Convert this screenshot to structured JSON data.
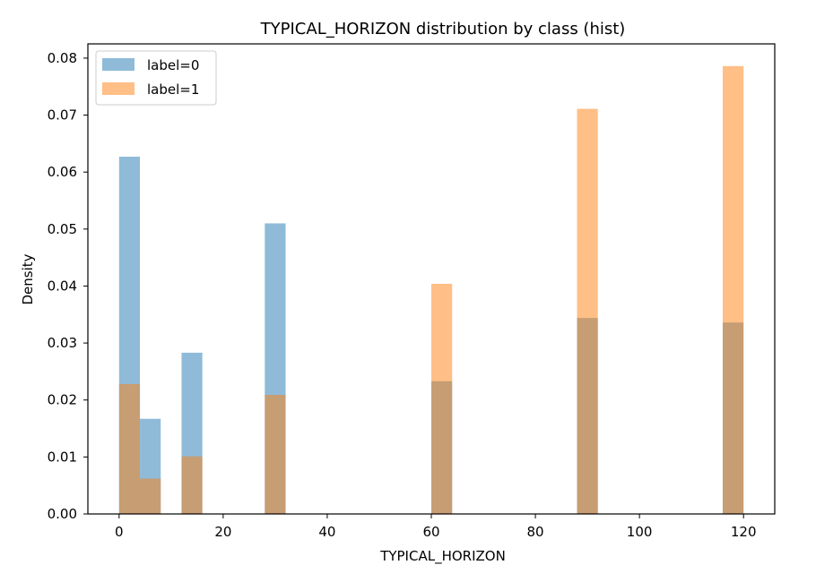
{
  "chart_data": {
    "type": "bar",
    "title": "TYPICAL_HORIZON distribution by class (hist)",
    "xlabel": "TYPICAL_HORIZON",
    "ylabel": "Density",
    "xlim": [
      -6,
      126
    ],
    "ylim": [
      0,
      0.0825
    ],
    "xticks": [
      0,
      20,
      40,
      60,
      80,
      100,
      120
    ],
    "xtick_labels": [
      "0",
      "20",
      "40",
      "60",
      "80",
      "100",
      "120"
    ],
    "yticks": [
      0,
      0.01,
      0.02,
      0.03,
      0.04,
      0.05,
      0.06,
      0.07,
      0.08
    ],
    "ytick_labels": [
      "0.00",
      "0.01",
      "0.02",
      "0.03",
      "0.04",
      "0.05",
      "0.06",
      "0.07",
      "0.08"
    ],
    "grid": false,
    "legend_position": "top-left",
    "bin_width": 4,
    "series": [
      {
        "name": "label=0",
        "color": "#1f77b4",
        "alpha": 0.5,
        "bins": [
          {
            "x0": 0,
            "x1": 4,
            "value": 0.0627
          },
          {
            "x0": 4,
            "x1": 8,
            "value": 0.0167
          },
          {
            "x0": 12,
            "x1": 16,
            "value": 0.0283
          },
          {
            "x0": 28,
            "x1": 32,
            "value": 0.051
          },
          {
            "x0": 60,
            "x1": 64,
            "value": 0.0233
          },
          {
            "x0": 88,
            "x1": 92,
            "value": 0.0344
          },
          {
            "x0": 116,
            "x1": 120,
            "value": 0.0336
          }
        ]
      },
      {
        "name": "label=1",
        "color": "#ff7f0e",
        "alpha": 0.5,
        "bins": [
          {
            "x0": 0,
            "x1": 4,
            "value": 0.0228
          },
          {
            "x0": 4,
            "x1": 8,
            "value": 0.0062
          },
          {
            "x0": 12,
            "x1": 16,
            "value": 0.0101
          },
          {
            "x0": 28,
            "x1": 32,
            "value": 0.0209
          },
          {
            "x0": 60,
            "x1": 64,
            "value": 0.0404
          },
          {
            "x0": 88,
            "x1": 92,
            "value": 0.0711
          },
          {
            "x0": 116,
            "x1": 120,
            "value": 0.0786
          }
        ]
      }
    ]
  }
}
